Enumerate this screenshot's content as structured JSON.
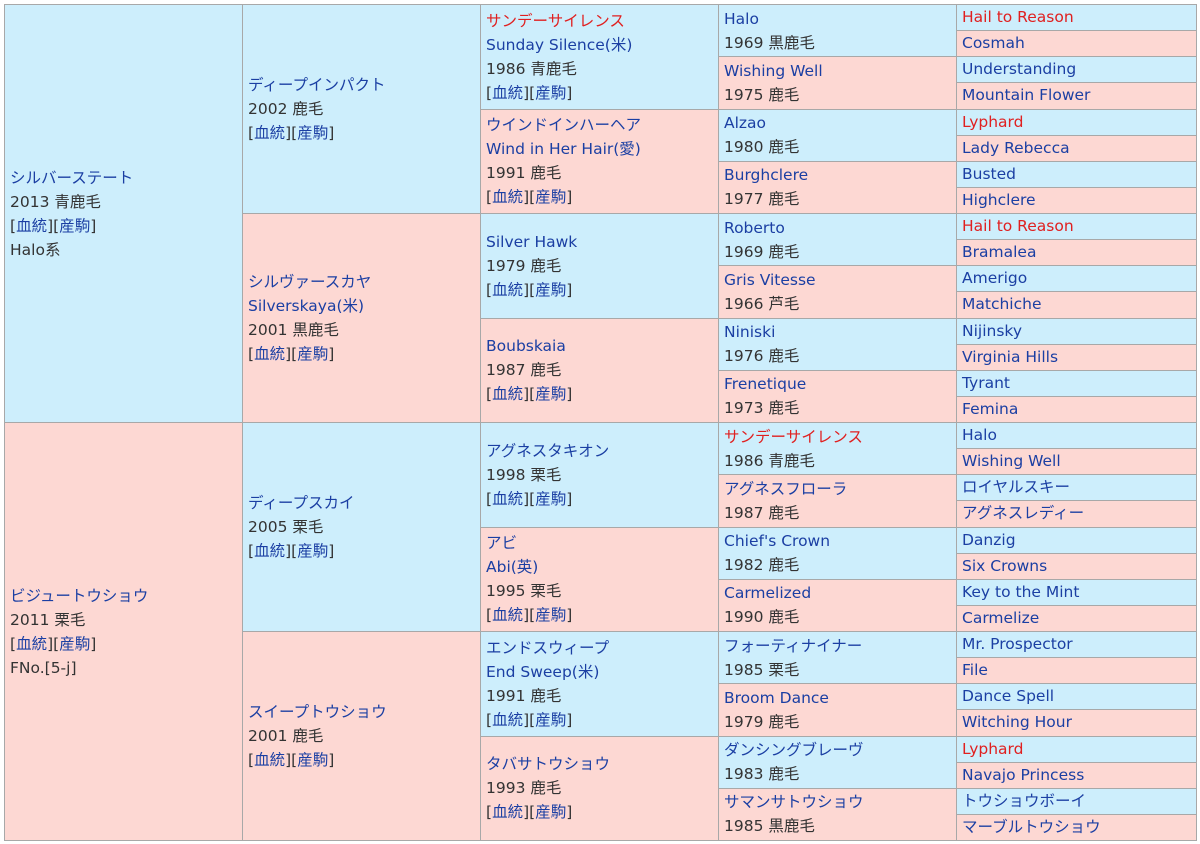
{
  "g1": [
    {
      "name": "シルバーステート",
      "hot": false,
      "info": "2013 青鹿毛",
      "links": [
        "血統",
        "産駒"
      ],
      "extra": "Halo系"
    },
    {
      "name": "ビジュートウショウ",
      "hot": false,
      "info": "2011 栗毛",
      "links": [
        "血統",
        "産駒"
      ],
      "extra": "FNo.[5-j]"
    }
  ],
  "g2": [
    {
      "name": "ディープインパクト",
      "hot": false,
      "info": "2002 鹿毛",
      "links": [
        "血統",
        "産駒"
      ]
    },
    {
      "name": "シルヴァースカヤ",
      "alt": "Silverskaya(米)",
      "hot": false,
      "info": "2001 黒鹿毛",
      "links": [
        "血統",
        "産駒"
      ]
    },
    {
      "name": "ディープスカイ",
      "hot": false,
      "info": "2005 栗毛",
      "links": [
        "血統",
        "産駒"
      ]
    },
    {
      "name": "スイープトウショウ",
      "hot": false,
      "info": "2001 鹿毛",
      "links": [
        "血統",
        "産駒"
      ]
    }
  ],
  "g3": [
    {
      "name": "サンデーサイレンス",
      "alt": "Sunday Silence(米)",
      "hot": true,
      "info": "1986 青鹿毛",
      "links": [
        "血統",
        "産駒"
      ]
    },
    {
      "name": "ウインドインハーヘア",
      "alt": "Wind in Her Hair(愛)",
      "hot": false,
      "info": "1991 鹿毛",
      "links": [
        "血統",
        "産駒"
      ]
    },
    {
      "name": "Silver Hawk",
      "hot": false,
      "info": "1979 鹿毛",
      "links": [
        "血統",
        "産駒"
      ]
    },
    {
      "name": "Boubskaia",
      "hot": false,
      "info": "1987 鹿毛",
      "links": [
        "血統",
        "産駒"
      ]
    },
    {
      "name": "アグネスタキオン",
      "hot": false,
      "info": "1998 栗毛",
      "links": [
        "血統",
        "産駒"
      ]
    },
    {
      "name": "アビ",
      "alt": "Abi(英)",
      "hot": false,
      "info": "1995 栗毛",
      "links": [
        "血統",
        "産駒"
      ]
    },
    {
      "name": "エンドスウィープ",
      "alt": "End Sweep(米)",
      "hot": false,
      "info": "1991 鹿毛",
      "links": [
        "血統",
        "産駒"
      ]
    },
    {
      "name": "タバサトウショウ",
      "hot": false,
      "info": "1993 鹿毛",
      "links": [
        "血統",
        "産駒"
      ]
    }
  ],
  "g4": [
    {
      "name": "Halo",
      "hot": false,
      "info": "1969 黒鹿毛"
    },
    {
      "name": "Wishing Well",
      "hot": false,
      "info": "1975 鹿毛"
    },
    {
      "name": "Alzao",
      "hot": false,
      "info": "1980 鹿毛"
    },
    {
      "name": "Burghclere",
      "hot": false,
      "info": "1977 鹿毛"
    },
    {
      "name": "Roberto",
      "hot": false,
      "info": "1969 鹿毛"
    },
    {
      "name": "Gris Vitesse",
      "hot": false,
      "info": "1966 芦毛"
    },
    {
      "name": "Niniski",
      "hot": false,
      "info": "1976 鹿毛"
    },
    {
      "name": "Frenetique",
      "hot": false,
      "info": "1973 鹿毛"
    },
    {
      "name": "サンデーサイレンス",
      "hot": true,
      "info": "1986 青鹿毛"
    },
    {
      "name": "アグネスフローラ",
      "hot": false,
      "info": "1987 鹿毛"
    },
    {
      "name": "Chief's Crown",
      "hot": false,
      "info": "1982 鹿毛"
    },
    {
      "name": "Carmelized",
      "hot": false,
      "info": "1990 鹿毛"
    },
    {
      "name": "フォーティナイナー",
      "hot": false,
      "info": "1985 栗毛"
    },
    {
      "name": "Broom Dance",
      "hot": false,
      "info": "1979 鹿毛"
    },
    {
      "name": "ダンシングブレーヴ",
      "hot": false,
      "info": "1983 鹿毛"
    },
    {
      "name": "サマンサトウショウ",
      "hot": false,
      "info": "1985 黒鹿毛"
    }
  ],
  "g5": [
    {
      "name": "Hail to Reason",
      "hot": true
    },
    {
      "name": "Cosmah",
      "hot": false
    },
    {
      "name": "Understanding",
      "hot": false
    },
    {
      "name": "Mountain Flower",
      "hot": false
    },
    {
      "name": "Lyphard",
      "hot": true
    },
    {
      "name": "Lady Rebecca",
      "hot": false
    },
    {
      "name": "Busted",
      "hot": false
    },
    {
      "name": "Highclere",
      "hot": false
    },
    {
      "name": "Hail to Reason",
      "hot": true
    },
    {
      "name": "Bramalea",
      "hot": false
    },
    {
      "name": "Amerigo",
      "hot": false
    },
    {
      "name": "Matchiche",
      "hot": false
    },
    {
      "name": "Nijinsky",
      "hot": false
    },
    {
      "name": "Virginia Hills",
      "hot": false
    },
    {
      "name": "Tyrant",
      "hot": false
    },
    {
      "name": "Femina",
      "hot": false
    },
    {
      "name": "Halo",
      "hot": false
    },
    {
      "name": "Wishing Well",
      "hot": false
    },
    {
      "name": "ロイヤルスキー",
      "hot": false
    },
    {
      "name": "アグネスレディー",
      "hot": false
    },
    {
      "name": "Danzig",
      "hot": false
    },
    {
      "name": "Six Crowns",
      "hot": false
    },
    {
      "name": "Key to the Mint",
      "hot": false
    },
    {
      "name": "Carmelize",
      "hot": false
    },
    {
      "name": "Mr. Prospector",
      "hot": false
    },
    {
      "name": "File",
      "hot": false
    },
    {
      "name": "Dance Spell",
      "hot": false
    },
    {
      "name": "Witching Hour",
      "hot": false
    },
    {
      "name": "Lyphard",
      "hot": true
    },
    {
      "name": "Navajo Princess",
      "hot": false
    },
    {
      "name": "トウショウボーイ",
      "hot": false
    },
    {
      "name": "マーブルトウショウ",
      "hot": false
    }
  ]
}
